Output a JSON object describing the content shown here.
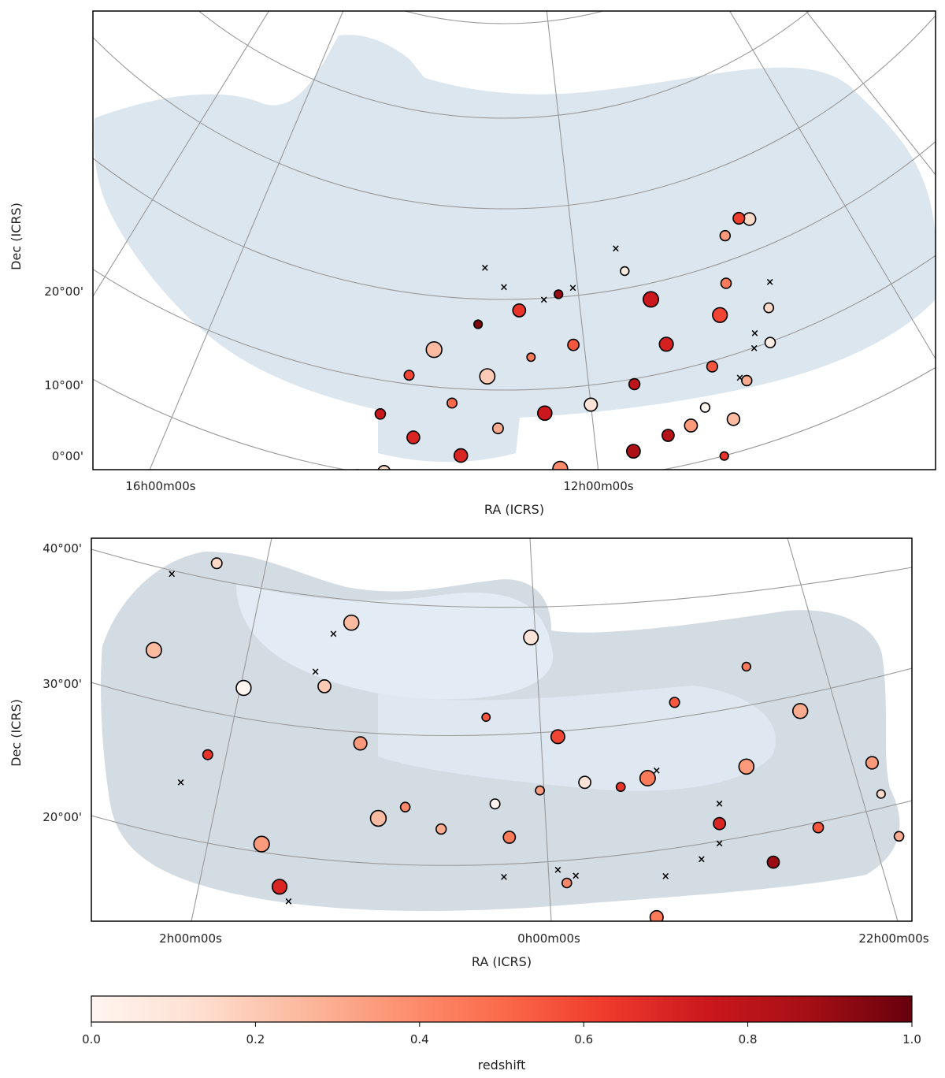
{
  "chart_data": [
    {
      "type": "scatter",
      "panel": "top",
      "xlabel": "RA (ICRS)",
      "ylabel": "Dec (ICRS)",
      "x_ticks": [
        {
          "label": "16h00m00s",
          "ra_h": 16
        },
        {
          "label": "12h00m00s",
          "ra_h": 12
        }
      ],
      "y_ticks": [
        {
          "label": "20°00'",
          "dec": 20
        },
        {
          "label": "10°00'",
          "dec": 10
        },
        {
          "label": "0°00'",
          "dec": 0
        }
      ],
      "grid": true,
      "points": [
        {
          "ra": 15.8,
          "dec": 35.5,
          "z": 0.15
        },
        {
          "ra": 15.6,
          "dec": 36.0,
          "z": 0.62
        },
        {
          "ra": 15.2,
          "dec": 34.8,
          "z": 0.35
        },
        {
          "ra": 14.9,
          "dec": 30.0,
          "z": 0.45
        },
        {
          "ra": 15.5,
          "dec": 26.0,
          "z": 0.15
        },
        {
          "ra": 14.6,
          "dec": 27.0,
          "z": 0.6
        },
        {
          "ra": 15.3,
          "dec": 22.5,
          "z": 0.05
        },
        {
          "ra": 14.7,
          "dec": 19.5,
          "z": 0.3
        },
        {
          "ra": 14.3,
          "dec": 16.0,
          "z": 0.25
        },
        {
          "ra": 14.0,
          "dec": 12.5,
          "z": 0.65
        },
        {
          "ra": 14.2,
          "dec": 22.0,
          "z": 0.55
        },
        {
          "ra": 13.9,
          "dec": 18.0,
          "z": 0.0
        },
        {
          "ra": 13.6,
          "dec": 16.5,
          "z": 0.35
        },
        {
          "ra": 13.2,
          "dec": 16.0,
          "z": 0.82
        },
        {
          "ra": 13.5,
          "dec": 25.5,
          "z": 0.72
        },
        {
          "ra": 13.4,
          "dec": 30.5,
          "z": 0.75
        },
        {
          "ra": 13.0,
          "dec": 34.0,
          "z": 0.05
        },
        {
          "ra": 12.8,
          "dec": 22.0,
          "z": 0.8
        },
        {
          "ra": 12.6,
          "dec": 15.0,
          "z": 0.85
        },
        {
          "ra": 12.4,
          "dec": 9.5,
          "z": 0.3
        },
        {
          "ra": 12.2,
          "dec": 3.0,
          "z": 0.0
        },
        {
          "ra": 12.0,
          "dec": 20.5,
          "z": 0.1
        },
        {
          "ra": 11.8,
          "dec": 27.0,
          "z": 0.55
        },
        {
          "ra": 11.6,
          "dec": 32.5,
          "z": 0.9
        },
        {
          "ra": 11.4,
          "dec": 14.0,
          "z": 0.4
        },
        {
          "ra": 11.2,
          "dec": 20.0,
          "z": 0.75
        },
        {
          "ra": 11.0,
          "dec": 26.0,
          "z": 0.45
        },
        {
          "ra": 10.8,
          "dec": 31.0,
          "z": 0.65
        },
        {
          "ra": 10.6,
          "dec": 12.0,
          "z": 0.55
        },
        {
          "ra": 10.4,
          "dec": 18.5,
          "z": 0.3
        },
        {
          "ra": 10.2,
          "dec": 24.0,
          "z": 0.2
        },
        {
          "ra": 10.0,
          "dec": 29.5,
          "z": 0.95
        },
        {
          "ra": 9.8,
          "dec": 15.5,
          "z": 0.7
        },
        {
          "ra": 9.6,
          "dec": 21.0,
          "z": 0.5
        },
        {
          "ra": 9.4,
          "dec": 9.0,
          "z": 0.6
        },
        {
          "ra": 9.2,
          "dec": 26.5,
          "z": 0.25
        },
        {
          "ra": 9.0,
          "dec": 17.0,
          "z": 0.7
        },
        {
          "ra": 8.8,
          "dec": 23.5,
          "z": 0.6
        },
        {
          "ra": 8.6,
          "dec": 13.0,
          "z": 0.15
        },
        {
          "ra": 8.4,
          "dec": 19.0,
          "z": 0.75
        },
        {
          "ra": 8.2,
          "dec": 12.0,
          "z": 0.55
        }
      ],
      "excluded_markers": [
        {
          "ra": 15.7,
          "dec": 28.5
        },
        {
          "ra": 15.1,
          "dec": 24.0
        },
        {
          "ra": 15.0,
          "dec": 22.5
        },
        {
          "ra": 14.6,
          "dec": 20.0
        },
        {
          "ra": 12.9,
          "dec": 36.5
        },
        {
          "ra": 11.9,
          "dec": 33.0
        },
        {
          "ra": 11.3,
          "dec": 32.0
        },
        {
          "ra": 10.5,
          "dec": 33.5
        },
        {
          "ra": 10.1,
          "dec": 35.5
        },
        {
          "ra": 9.0,
          "dec": 8.0
        }
      ]
    },
    {
      "type": "scatter",
      "panel": "bottom",
      "xlabel": "RA (ICRS)",
      "ylabel": "Dec (ICRS)",
      "x_ticks": [
        {
          "label": "2h00m00s",
          "ra_h": 2
        },
        {
          "label": "0h00m00s",
          "ra_h": 0
        },
        {
          "label": "22h00m00s",
          "ra_h": -2
        }
      ],
      "y_ticks": [
        {
          "label": "40°00'",
          "dec": 40
        },
        {
          "label": "30°00'",
          "dec": 30
        },
        {
          "label": "20°00'",
          "dec": 20
        }
      ],
      "grid": true,
      "points": [
        {
          "ra": 1.85,
          "dec": 39.0,
          "z": 0.15
        },
        {
          "ra": 2.2,
          "dec": 31.5,
          "z": 0.25
        },
        {
          "ra": 1.9,
          "dec": 24.5,
          "z": 0.65
        },
        {
          "ra": 1.7,
          "dec": 30.0,
          "z": 0.0
        },
        {
          "ra": 1.6,
          "dec": 18.5,
          "z": 0.35
        },
        {
          "ra": 1.5,
          "dec": 15.5,
          "z": 0.7
        },
        {
          "ra": 1.25,
          "dec": 31.0,
          "z": 0.2
        },
        {
          "ra": 1.1,
          "dec": 36.0,
          "z": 0.25
        },
        {
          "ra": 1.05,
          "dec": 27.0,
          "z": 0.35
        },
        {
          "ra": 0.95,
          "dec": 21.5,
          "z": 0.25
        },
        {
          "ra": 0.8,
          "dec": 22.5,
          "z": 0.4
        },
        {
          "ra": 0.6,
          "dec": 21.0,
          "z": 0.3
        },
        {
          "ra": 0.45,
          "dec": 13.5,
          "z": 0.2
        },
        {
          "ra": 0.35,
          "dec": 29.5,
          "z": 0.55
        },
        {
          "ra": 0.3,
          "dec": 23.0,
          "z": 0.0
        },
        {
          "ra": 0.22,
          "dec": 20.5,
          "z": 0.45
        },
        {
          "ra": 0.1,
          "dec": 35.5,
          "z": 0.1
        },
        {
          "ra": 0.05,
          "dec": 24.0,
          "z": 0.35
        },
        {
          "ra": -0.05,
          "dec": 28.0,
          "z": 0.6
        },
        {
          "ra": -0.1,
          "dec": 17.0,
          "z": 0.4
        },
        {
          "ra": -0.2,
          "dec": 24.5,
          "z": 0.1
        },
        {
          "ra": -0.4,
          "dec": 24.0,
          "z": 0.65
        },
        {
          "ra": -0.55,
          "dec": 24.5,
          "z": 0.45
        },
        {
          "ra": -0.6,
          "dec": 14.0,
          "z": 0.45
        },
        {
          "ra": -0.7,
          "dec": 30.0,
          "z": 0.55
        },
        {
          "ra": -0.95,
          "dec": 20.5,
          "z": 0.7
        },
        {
          "ra": -1.1,
          "dec": 32.0,
          "z": 0.45
        },
        {
          "ra": -1.1,
          "dec": 24.5,
          "z": 0.35
        },
        {
          "ra": -1.25,
          "dec": 17.0,
          "z": 0.9
        },
        {
          "ra": -1.4,
          "dec": 28.0,
          "z": 0.3
        },
        {
          "ra": -1.5,
          "dec": 19.0,
          "z": 0.55
        },
        {
          "ra": -1.8,
          "dec": 23.0,
          "z": 0.35
        },
        {
          "ra": -1.85,
          "dec": 20.5,
          "z": 0.15
        },
        {
          "ra": -1.95,
          "dec": 17.0,
          "z": 0.3
        }
      ],
      "excluded_markers": [
        {
          "ra": 2.1,
          "dec": 37.5
        },
        {
          "ra": 1.2,
          "dec": 35.0
        },
        {
          "ra": 1.3,
          "dec": 32.0
        },
        {
          "ra": 2.05,
          "dec": 22.0
        },
        {
          "ra": 1.45,
          "dec": 14.5
        },
        {
          "ra": 0.55,
          "dec": 13.0
        },
        {
          "ra": 0.25,
          "dec": 17.5
        },
        {
          "ra": -0.05,
          "dec": 18.0
        },
        {
          "ra": -0.15,
          "dec": 17.5
        },
        {
          "ra": -0.6,
          "dec": 25.0
        },
        {
          "ra": -0.65,
          "dec": 17.0
        },
        {
          "ra": -0.95,
          "dec": 22.0
        },
        {
          "ra": -0.95,
          "dec": 19.0
        },
        {
          "ra": -0.85,
          "dec": 18.0
        }
      ]
    }
  ],
  "colorbar": {
    "label": "redshift",
    "min": 0.0,
    "max": 1.0,
    "tick_labels": [
      "0.0",
      "0.2",
      "0.4",
      "0.6",
      "0.8",
      "1.0"
    ],
    "colormap": [
      "#fff5f0",
      "#fee0d2",
      "#fcbba1",
      "#fc9272",
      "#fb6a4a",
      "#ef3b2c",
      "#cb181d",
      "#a50f15",
      "#67000d"
    ]
  },
  "colors": {
    "footprint_fill": "#dce7f0",
    "footprint_fill_dark": "#cfd6de",
    "grid_line": "#999999",
    "marker_edge": "#000000",
    "excluded_marker": "#000000"
  }
}
